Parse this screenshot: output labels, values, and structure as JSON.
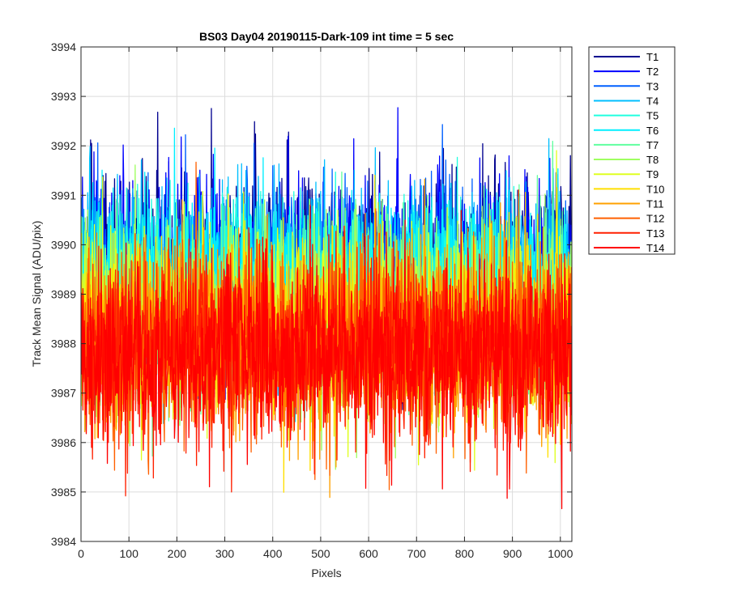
{
  "chart_data": {
    "type": "line",
    "title": "BS03 Day04 20190115-Dark-109 int time = 5 sec",
    "xlabel": "Pixels",
    "ylabel": "Track Mean Signal (ADU/pix)",
    "xlim": [
      0,
      1024
    ],
    "ylim": [
      3984,
      3994
    ],
    "xticks": [
      0,
      100,
      200,
      300,
      400,
      500,
      600,
      700,
      800,
      900,
      1000
    ],
    "yticks": [
      3984,
      3985,
      3986,
      3987,
      3988,
      3989,
      3990,
      3991,
      3992,
      3993,
      3994
    ],
    "grid": true,
    "legend_position": "outside-top-right",
    "n_points_per_series": 1024,
    "series": [
      {
        "name": "T1",
        "color": "#00008F",
        "mean": 3989.6,
        "noise_std": 0.95
      },
      {
        "name": "T2",
        "color": "#0000FF",
        "mean": 3989.5,
        "noise_std": 0.95
      },
      {
        "name": "T3",
        "color": "#0060FF",
        "mean": 3989.4,
        "noise_std": 0.9
      },
      {
        "name": "T4",
        "color": "#00BFFF",
        "mean": 3989.3,
        "noise_std": 0.9
      },
      {
        "name": "T5",
        "color": "#20FFDF",
        "mean": 3989.1,
        "noise_std": 0.9
      },
      {
        "name": "T6",
        "color": "#00EFFF",
        "mean": 3989.0,
        "noise_std": 0.9
      },
      {
        "name": "T7",
        "color": "#60FF9F",
        "mean": 3988.8,
        "noise_std": 0.9
      },
      {
        "name": "T8",
        "color": "#9FFF60",
        "mean": 3988.6,
        "noise_std": 0.9
      },
      {
        "name": "T9",
        "color": "#DFFF20",
        "mean": 3988.4,
        "noise_std": 0.9
      },
      {
        "name": "T10",
        "color": "#FFDF00",
        "mean": 3988.3,
        "noise_std": 0.9
      },
      {
        "name": "T11",
        "color": "#FFA000",
        "mean": 3988.1,
        "noise_std": 0.95
      },
      {
        "name": "T12",
        "color": "#FF6000",
        "mean": 3988.0,
        "noise_std": 0.95
      },
      {
        "name": "T13",
        "color": "#FF2000",
        "mean": 3987.9,
        "noise_std": 0.95
      },
      {
        "name": "T14",
        "color": "#FF0000",
        "mean": 3987.8,
        "noise_std": 0.95
      }
    ]
  }
}
